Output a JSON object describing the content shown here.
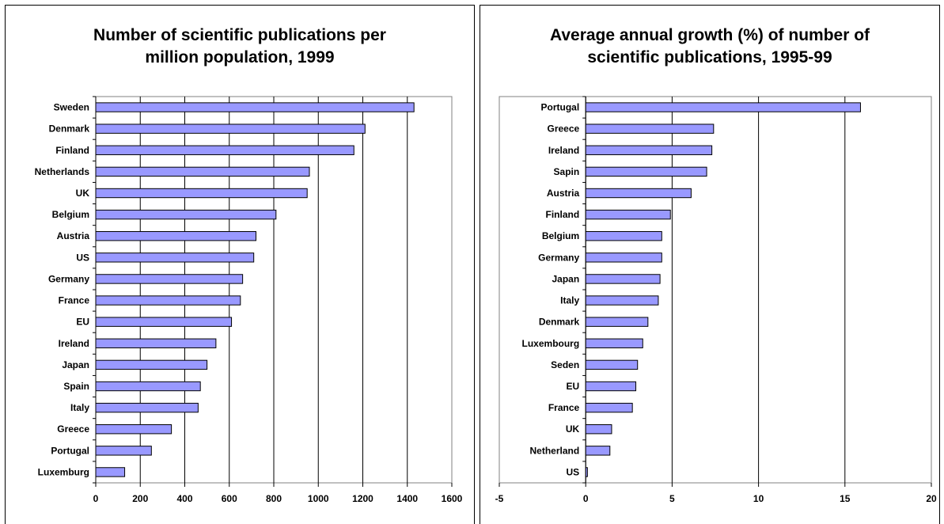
{
  "chart_data": [
    {
      "type": "bar",
      "orientation": "horizontal",
      "title": "Number of scientific publications per million population, 1999",
      "categories": [
        "Sweden",
        "Denmark",
        "Finland",
        "Netherlands",
        "UK",
        "Belgium",
        "Austria",
        "US",
        "Germany",
        "France",
        "EU",
        "Ireland",
        "Japan",
        "Spain",
        "Italy",
        "Greece",
        "Portugal",
        "Luxemburg"
      ],
      "values": [
        1430,
        1210,
        1160,
        960,
        950,
        810,
        720,
        710,
        660,
        650,
        610,
        540,
        500,
        470,
        460,
        340,
        250,
        130
      ],
      "xlim": [
        0,
        1600
      ],
      "xticks": [
        0,
        200,
        400,
        600,
        800,
        1000,
        1200,
        1400,
        1600
      ],
      "grid": true,
      "bar_color": "#9999ff"
    },
    {
      "type": "bar",
      "orientation": "horizontal",
      "title": "Average annual growth (%) of number of scientific publications, 1995-99",
      "categories": [
        "Portugal",
        "Greece",
        "Ireland",
        "Sapin",
        "Austria",
        "Finland",
        "Belgium",
        "Germany",
        "Japan",
        "Italy",
        "Denmark",
        "Luxembourg",
        "Seden",
        "EU",
        "France",
        "UK",
        "Netherland",
        "US"
      ],
      "values": [
        15.9,
        7.4,
        7.3,
        7.0,
        6.1,
        4.9,
        4.4,
        4.4,
        4.3,
        4.2,
        3.6,
        3.3,
        3.0,
        2.9,
        2.7,
        1.5,
        1.4,
        0.1
      ],
      "xlim": [
        -5,
        20
      ],
      "xticks": [
        -5,
        0,
        5,
        10,
        15,
        20
      ],
      "grid": true,
      "bar_color": "#9999ff"
    }
  ]
}
